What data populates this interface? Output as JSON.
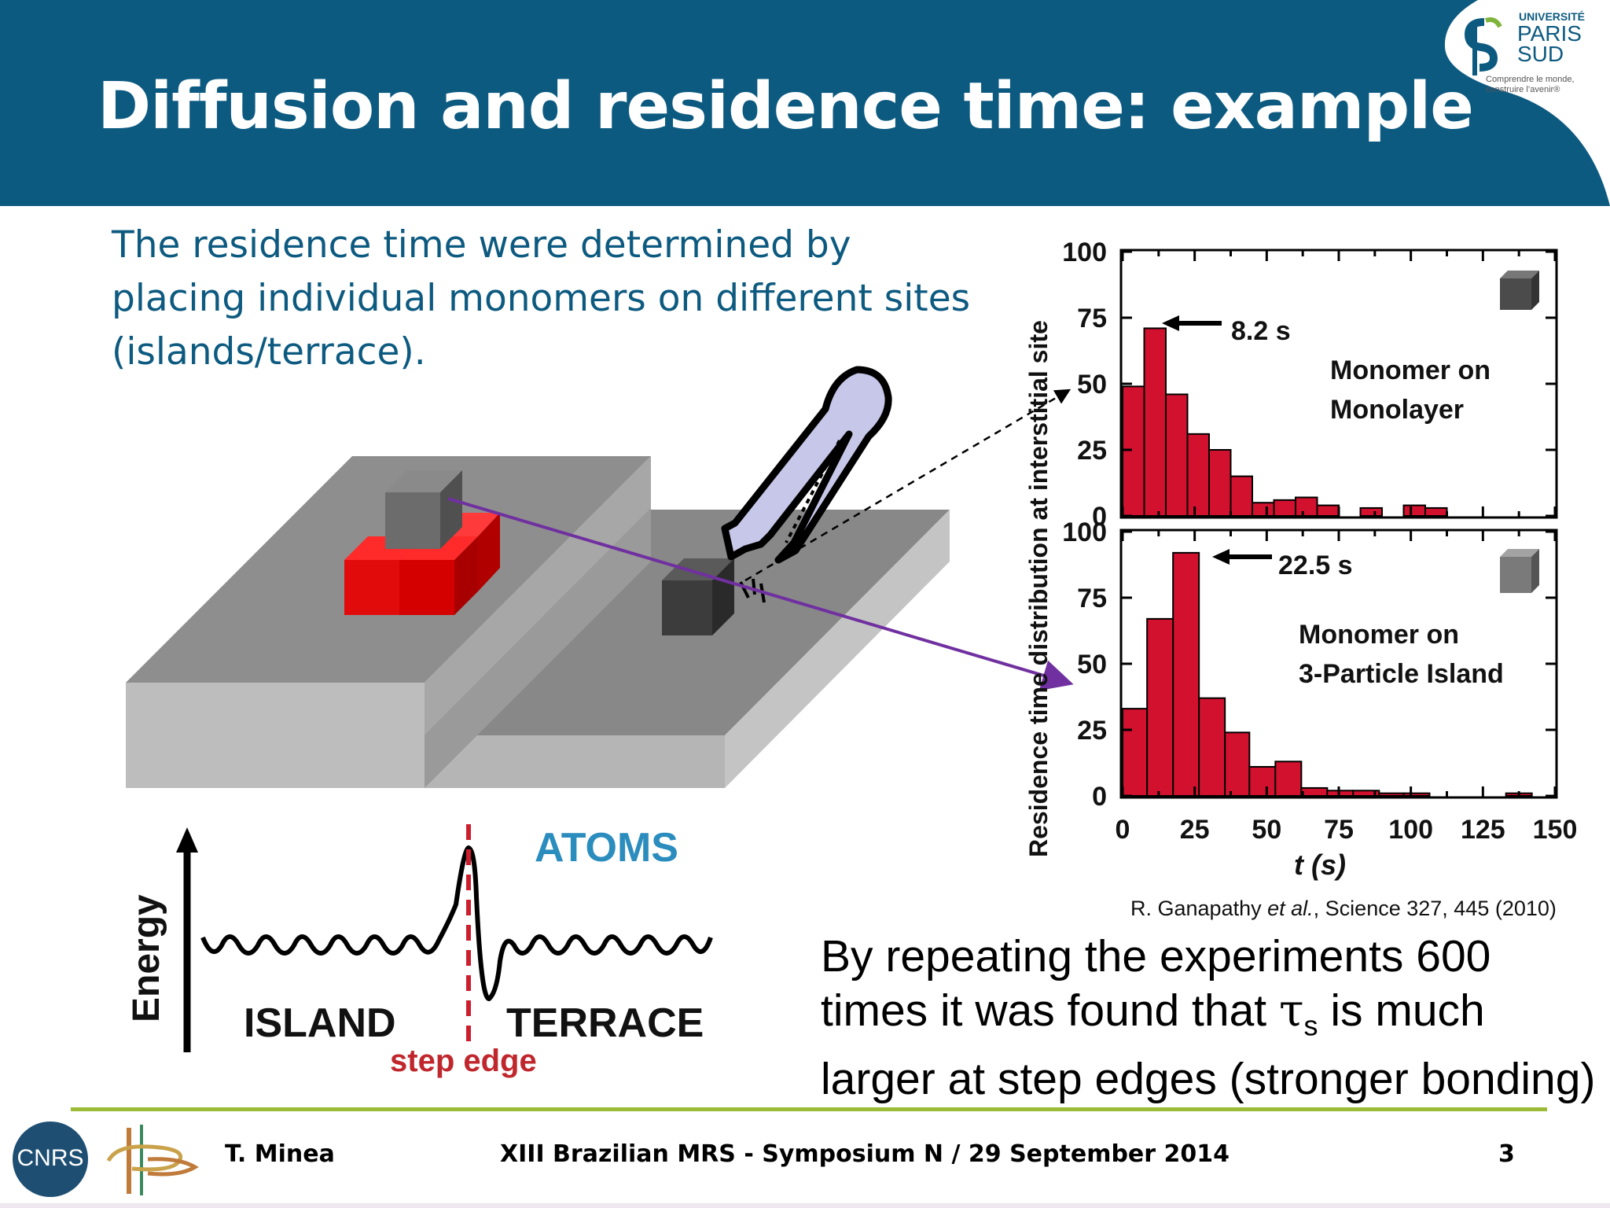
{
  "slide": {
    "title": "Diffusion and residence time: example",
    "intro": "The residence time were determined by placing individual monomers on different sites (islands/terrace).",
    "citation": {
      "authors": "R. Ganapathy",
      "etal": "et al.",
      "source": ", Science 327, 445 (2010)"
    },
    "conclusion": {
      "line1": "By repeating the experiments 600",
      "line2_a": "times it was found that ",
      "tau": "τ",
      "tau_sub": "s",
      "line2_b": " is much",
      "line3": "larger at step edges (stronger bonding)"
    }
  },
  "logo": {
    "line1": "UNIVERSITÉ",
    "line2": "PARIS",
    "line3": "SUD",
    "tagline1": "Comprendre le monde,",
    "tagline2": "construire l’avenir®"
  },
  "energy_diagram": {
    "ylabel": "Energy",
    "island_label": "ISLAND",
    "terrace_label": "TERRACE",
    "step_label": "step edge",
    "atoms_label": "ATOMS"
  },
  "chart_data": [
    {
      "type": "bar",
      "panel": "top",
      "annotation": "8.2 s",
      "label_line1": "Monomer on",
      "label_line2": "Monolayer",
      "ylim": [
        0,
        100
      ],
      "yticks": [
        "100",
        "75",
        "50",
        "25",
        "0"
      ],
      "xlim": [
        0,
        150
      ],
      "bin_width": 7.5,
      "bin_starts": [
        0,
        7.5,
        15,
        22.5,
        30,
        37.5,
        45,
        52.5,
        60,
        67.5,
        75,
        82.5,
        90
      ],
      "values": [
        49,
        71,
        46,
        31,
        25,
        15,
        5,
        5,
        7,
        0,
        0,
        0,
        0
      ],
      "extra_bars": [
        {
          "x": 52.5,
          "value": 6
        },
        {
          "x": 60,
          "value": 0
        },
        {
          "x": 67.5,
          "value": 4
        },
        {
          "x": 82.5,
          "value": 3
        },
        {
          "x": 97.5,
          "value": 4
        },
        {
          "x": 105,
          "value": 3
        }
      ]
    },
    {
      "type": "bar",
      "panel": "bottom",
      "annotation": "22.5 s",
      "label_line1": "Monomer on",
      "label_line2": "3-Particle Island",
      "ylim": [
        0,
        100
      ],
      "yticks": [
        "100",
        "75",
        "50",
        "25",
        "0"
      ],
      "xlim": [
        0,
        150
      ],
      "xticks": [
        "0",
        "25",
        "50",
        "75",
        "100",
        "125",
        "150"
      ],
      "xlabel": "t (s)",
      "ylabel": "Residence time distribution at interstitial site",
      "bin_width": 8.75,
      "bins": [
        {
          "x0": 0,
          "x1": 8.5,
          "value": 33
        },
        {
          "x0": 8.5,
          "x1": 17.5,
          "value": 67
        },
        {
          "x0": 17.5,
          "x1": 26.5,
          "value": 92
        },
        {
          "x0": 26.5,
          "x1": 35.5,
          "value": 37
        },
        {
          "x0": 35.5,
          "x1": 44,
          "value": 24
        },
        {
          "x0": 44,
          "x1": 53,
          "value": 11
        },
        {
          "x0": 53,
          "x1": 62,
          "value": 13
        },
        {
          "x0": 62,
          "x1": 71,
          "value": 3
        },
        {
          "x0": 71,
          "x1": 80,
          "value": 2
        },
        {
          "x0": 80,
          "x1": 89,
          "value": 2
        },
        {
          "x0": 89,
          "x1": 97.5,
          "value": 1
        },
        {
          "x0": 97.5,
          "x1": 106.5,
          "value": 1
        },
        {
          "x0": 106.5,
          "x1": 115.5,
          "value": 0
        },
        {
          "x0": 115.5,
          "x1": 124.5,
          "value": 0
        },
        {
          "x0": 124.5,
          "x1": 133,
          "value": 0
        },
        {
          "x0": 133,
          "x1": 142,
          "value": 1
        }
      ]
    }
  ],
  "footer": {
    "author": "T. Minea",
    "event": "XIII Brazilian MRS - Symposium N / 29 September 2014",
    "page": "3",
    "cnrs_text": "CNRS"
  },
  "colors": {
    "header": "#0d5a80",
    "bar": "#d2112f",
    "arrow": "#7030a0",
    "footer_line": "#9bbb36",
    "atoms": "#2b8cbe"
  }
}
